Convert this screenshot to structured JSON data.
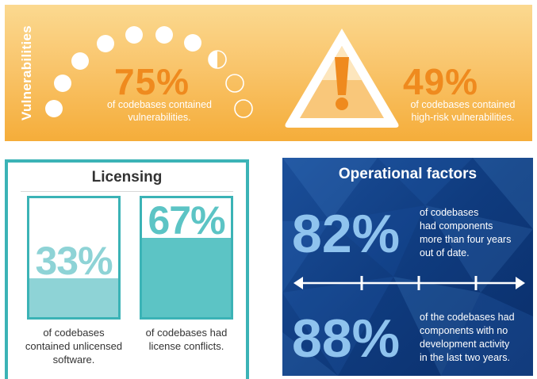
{
  "vulnerabilities": {
    "side_label": "Vulnerabilities",
    "stat1": {
      "percent": "75%",
      "line1": "of codebases contained",
      "line2": "vulnerabilities."
    },
    "stat2": {
      "percent": "49%",
      "line1": "of codebases contained",
      "line2": "high-risk vulnerabilities."
    },
    "icon": "warning-triangle-icon",
    "dots_filled_fraction": 0.75,
    "colors": {
      "accent": "#ef8a1e",
      "banner": "#f9c56c"
    }
  },
  "licensing": {
    "title": "Licensing",
    "box1": {
      "percent": "33%",
      "fill": 0.33,
      "line1": "of codebases",
      "line2": "contained unlicensed",
      "line3": "software."
    },
    "box2": {
      "percent": "67%",
      "fill": 0.67,
      "line1": "of codebases had",
      "line2": "license conflicts."
    },
    "colors": {
      "border": "#3bb3b6",
      "fill_light": "#8ed3d6",
      "fill_dark": "#5cc4c5"
    }
  },
  "operational": {
    "title": "Operational factors",
    "stat1": {
      "percent": "82%",
      "line1": "of codebases",
      "line2": "had components",
      "line3": "more than four years",
      "line4": "out of date."
    },
    "stat2": {
      "percent": "88%",
      "line1": "of the codebases had",
      "line2": "components with no",
      "line3": "development activity",
      "line4": "in the last two years."
    },
    "icon": "timeline-arrow-icon",
    "colors": {
      "background": "#0f3b7e",
      "accent": "#8fc3ee"
    }
  }
}
